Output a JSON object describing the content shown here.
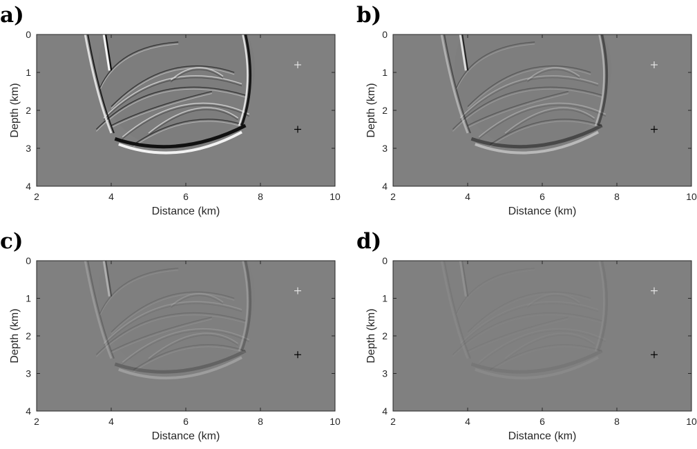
{
  "figure": {
    "marker_colors": {
      "top": "#e6e6e6",
      "bottom": "#000000"
    },
    "background_gray": "#808080"
  },
  "chart_data": [
    {
      "type": "heatmap",
      "panel_label": "a)",
      "xlabel": "Distance (km)",
      "ylabel": "Depth (km)",
      "xlim": [
        2,
        10
      ],
      "ylim": [
        4,
        0
      ],
      "xticks": [
        "2",
        "4",
        "6",
        "8",
        "10"
      ],
      "yticks": [
        "0",
        "1",
        "2",
        "3",
        "4"
      ],
      "markers": [
        {
          "x": 9,
          "y": 0.8,
          "symbol": "+",
          "color": "white"
        },
        {
          "x": 9,
          "y": 2.5,
          "symbol": "+",
          "color": "black"
        }
      ],
      "amplitude": 1.0,
      "colormap": "gray"
    },
    {
      "type": "heatmap",
      "panel_label": "b)",
      "xlabel": "Distance (km)",
      "ylabel": "Depth (km)",
      "xlim": [
        2,
        10
      ],
      "ylim": [
        4,
        0
      ],
      "xticks": [
        "2",
        "4",
        "6",
        "8",
        "10"
      ],
      "yticks": [
        "0",
        "1",
        "2",
        "3",
        "4"
      ],
      "markers": [
        {
          "x": 9,
          "y": 0.8,
          "symbol": "+",
          "color": "white"
        },
        {
          "x": 9,
          "y": 2.5,
          "symbol": "+",
          "color": "black"
        }
      ],
      "amplitude": 0.5,
      "colormap": "gray"
    },
    {
      "type": "heatmap",
      "panel_label": "c)",
      "xlabel": "Distance (km)",
      "ylabel": "Depth (km)",
      "xlim": [
        2,
        10
      ],
      "ylim": [
        4,
        0
      ],
      "xticks": [
        "2",
        "4",
        "6",
        "8",
        "10"
      ],
      "yticks": [
        "0",
        "1",
        "2",
        "3",
        "4"
      ],
      "markers": [
        {
          "x": 9,
          "y": 0.8,
          "symbol": "+",
          "color": "white"
        },
        {
          "x": 9,
          "y": 2.5,
          "symbol": "+",
          "color": "black"
        }
      ],
      "amplitude": 0.25,
      "colormap": "gray"
    },
    {
      "type": "heatmap",
      "panel_label": "d)",
      "xlabel": "Distance (km)",
      "ylabel": "Depth (km)",
      "xlim": [
        2,
        10
      ],
      "ylim": [
        4,
        0
      ],
      "xticks": [
        "2",
        "4",
        "6",
        "8",
        "10"
      ],
      "yticks": [
        "0",
        "1",
        "2",
        "3",
        "4"
      ],
      "markers": [
        {
          "x": 9,
          "y": 0.8,
          "symbol": "+",
          "color": "white"
        },
        {
          "x": 9,
          "y": 2.5,
          "symbol": "+",
          "color": "black"
        }
      ],
      "amplitude": 0.08,
      "colormap": "gray"
    }
  ]
}
